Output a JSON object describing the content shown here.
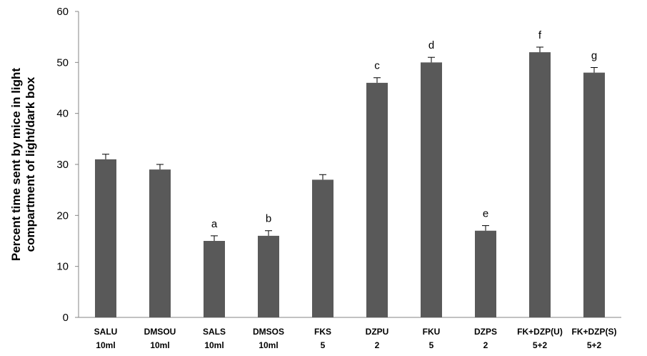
{
  "chart_data": {
    "type": "bar",
    "title": "",
    "xlabel": "",
    "ylabel_lines": [
      "Percent time sent by mice in light",
      "compartment of light/dark box"
    ],
    "ylim": [
      0,
      60
    ],
    "yticks": [
      "0",
      "10",
      "20",
      "30",
      "40",
      "50",
      "60"
    ],
    "grid": false,
    "bar_color": "#595959",
    "categories": [
      {
        "line1": "SALU",
        "line2": "10ml"
      },
      {
        "line1": "DMSOU",
        "line2": "10ml"
      },
      {
        "line1": "SALS",
        "line2": "10ml"
      },
      {
        "line1": "DMSOS",
        "line2": "10ml"
      },
      {
        "line1": "FKS",
        "line2": "5"
      },
      {
        "line1": "DZPU",
        "line2": "2"
      },
      {
        "line1": "FKU",
        "line2": "5"
      },
      {
        "line1": "DZPS",
        "line2": "2"
      },
      {
        "line1": "FK+DZP(U)",
        "line2": "5+2"
      },
      {
        "line1": "FK+DZP(S)",
        "line2": "5+2"
      }
    ],
    "values": [
      31,
      29,
      15,
      16,
      27,
      46,
      50,
      17,
      52,
      48
    ],
    "errors": [
      1,
      1,
      1,
      1,
      1,
      1,
      1,
      1,
      1,
      1
    ],
    "annotations": [
      "",
      "",
      "a",
      "b",
      "",
      "c",
      "d",
      "e",
      "f",
      "g"
    ]
  }
}
